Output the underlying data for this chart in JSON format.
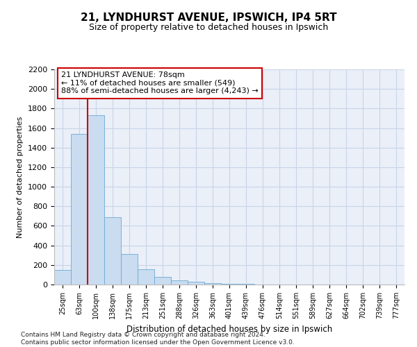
{
  "title": "21, LYNDHURST AVENUE, IPSWICH, IP4 5RT",
  "subtitle": "Size of property relative to detached houses in Ipswich",
  "xlabel": "Distribution of detached houses by size in Ipswich",
  "ylabel": "Number of detached properties",
  "categories": [
    "25sqm",
    "63sqm",
    "100sqm",
    "138sqm",
    "175sqm",
    "213sqm",
    "251sqm",
    "288sqm",
    "326sqm",
    "363sqm",
    "401sqm",
    "439sqm",
    "476sqm",
    "514sqm",
    "551sqm",
    "589sqm",
    "627sqm",
    "664sqm",
    "702sqm",
    "739sqm",
    "777sqm"
  ],
  "values": [
    150,
    1540,
    1730,
    690,
    310,
    155,
    75,
    40,
    25,
    17,
    10,
    5,
    3,
    2,
    1,
    1,
    1,
    0,
    0,
    0,
    0
  ],
  "bar_color": "#c9dcf0",
  "bar_edge_color": "#6aaad4",
  "grid_color": "#c8d4e8",
  "annotation_box_color": "#cc0000",
  "property_line_color": "#cc0000",
  "property_line_x": 1.5,
  "annotation_text": "21 LYNDHURST AVENUE: 78sqm\n← 11% of detached houses are smaller (549)\n88% of semi-detached houses are larger (4,243) →",
  "footnote_line1": "Contains HM Land Registry data © Crown copyright and database right 2024.",
  "footnote_line2": "Contains public sector information licensed under the Open Government Licence v3.0.",
  "ylim": [
    0,
    2200
  ],
  "yticks": [
    0,
    200,
    400,
    600,
    800,
    1000,
    1200,
    1400,
    1600,
    1800,
    2000,
    2200
  ],
  "background_color": "#ffffff",
  "plot_background": "#eaeff8"
}
